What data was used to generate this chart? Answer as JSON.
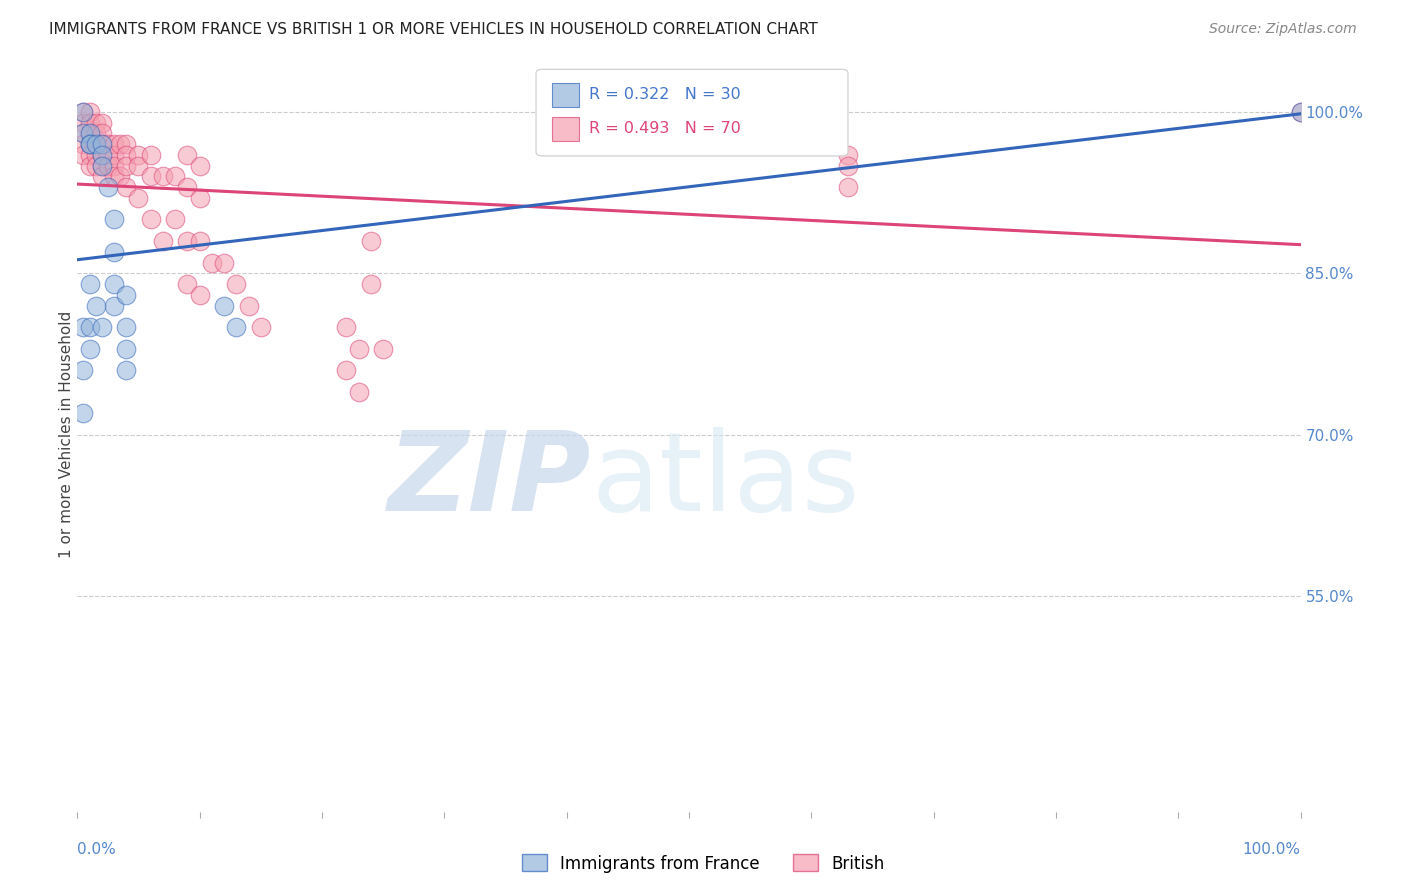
{
  "title": "IMMIGRANTS FROM FRANCE VS BRITISH 1 OR MORE VEHICLES IN HOUSEHOLD CORRELATION CHART",
  "source": "Source: ZipAtlas.com",
  "ylabel": "1 or more Vehicles in Household",
  "xlim": [
    0.0,
    1.0
  ],
  "ylim": [
    0.35,
    1.05
  ],
  "yticks": [
    0.55,
    0.7,
    0.85,
    1.0
  ],
  "ytick_labels": [
    "55.0%",
    "70.0%",
    "85.0%",
    "100.0%"
  ],
  "legend_blue_R": "R = 0.322",
  "legend_blue_N": "N = 30",
  "legend_pink_R": "R = 0.493",
  "legend_pink_N": "N = 70",
  "blue_color": "#92B4D9",
  "pink_color": "#F4A0B0",
  "blue_line_color": "#3366BB",
  "pink_line_color": "#DD4477",
  "blue_scatter_x": [
    0.005,
    0.005,
    0.01,
    0.01,
    0.01,
    0.015,
    0.02,
    0.02,
    0.02,
    0.025,
    0.03,
    0.03,
    0.03,
    0.03,
    0.04,
    0.04,
    0.04,
    0.04,
    0.005,
    0.005,
    0.005,
    0.01,
    0.01,
    0.01,
    0.015,
    0.02,
    0.12,
    0.13,
    0.62,
    1.0
  ],
  "blue_scatter_y": [
    1.0,
    0.98,
    0.98,
    0.97,
    0.97,
    0.97,
    0.97,
    0.96,
    0.95,
    0.93,
    0.9,
    0.87,
    0.84,
    0.82,
    0.83,
    0.8,
    0.78,
    0.76,
    0.8,
    0.76,
    0.72,
    0.78,
    0.8,
    0.84,
    0.82,
    0.8,
    0.82,
    0.8,
    0.98,
    1.0
  ],
  "pink_scatter_x": [
    0.005,
    0.005,
    0.005,
    0.005,
    0.005,
    0.01,
    0.01,
    0.01,
    0.01,
    0.01,
    0.01,
    0.015,
    0.015,
    0.015,
    0.015,
    0.015,
    0.02,
    0.02,
    0.02,
    0.02,
    0.02,
    0.02,
    0.025,
    0.025,
    0.025,
    0.03,
    0.03,
    0.03,
    0.03,
    0.035,
    0.035,
    0.04,
    0.04,
    0.04,
    0.04,
    0.05,
    0.05,
    0.05,
    0.06,
    0.06,
    0.06,
    0.07,
    0.07,
    0.08,
    0.08,
    0.09,
    0.09,
    0.09,
    0.09,
    0.1,
    0.1,
    0.1,
    0.1,
    0.11,
    0.12,
    0.13,
    0.14,
    0.15,
    0.22,
    0.22,
    0.23,
    0.23,
    0.24,
    0.24,
    0.25,
    0.62,
    0.63,
    0.63,
    0.63,
    1.0
  ],
  "pink_scatter_y": [
    1.0,
    0.99,
    0.98,
    0.97,
    0.96,
    1.0,
    0.99,
    0.98,
    0.97,
    0.96,
    0.95,
    0.99,
    0.98,
    0.97,
    0.96,
    0.95,
    0.99,
    0.98,
    0.97,
    0.96,
    0.95,
    0.94,
    0.97,
    0.96,
    0.95,
    0.97,
    0.96,
    0.95,
    0.94,
    0.97,
    0.94,
    0.97,
    0.96,
    0.95,
    0.93,
    0.96,
    0.95,
    0.92,
    0.96,
    0.94,
    0.9,
    0.94,
    0.88,
    0.94,
    0.9,
    0.96,
    0.93,
    0.88,
    0.84,
    0.95,
    0.92,
    0.88,
    0.83,
    0.86,
    0.86,
    0.84,
    0.82,
    0.8,
    0.8,
    0.76,
    0.78,
    0.74,
    0.88,
    0.84,
    0.78,
    0.97,
    0.96,
    0.95,
    0.93,
    1.0
  ]
}
